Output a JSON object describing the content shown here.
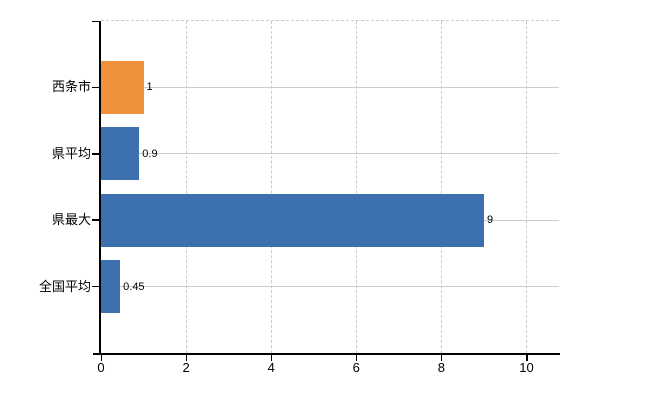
{
  "chart_data": {
    "type": "bar",
    "orientation": "horizontal",
    "title": "",
    "categories": [
      "西条市",
      "県平均",
      "県最大",
      "全国平均"
    ],
    "values": [
      1,
      0.9,
      9,
      0.45
    ],
    "value_labels": [
      "1",
      "0.9",
      "9",
      "0.45"
    ],
    "x_ticks": [
      0,
      2,
      4,
      6,
      8,
      10
    ],
    "x_tick_labels": [
      "0",
      "2",
      "4",
      "6",
      "8",
      "10"
    ],
    "xlim": [
      0,
      10.8
    ],
    "grid": true,
    "legend_position": "none",
    "bar_colors": [
      "#f0923b",
      "#3c70ae",
      "#3c70ae",
      "#3c70ae"
    ]
  },
  "colors": {
    "highlight_bar": "#f0923b",
    "default_bar": "#3c70ae",
    "axis": "#000000",
    "gridline_vertical": "#cbcbcb",
    "gridline_horizontal": "#c8cec8",
    "label_text": "#000000",
    "background": "#ffffff"
  }
}
